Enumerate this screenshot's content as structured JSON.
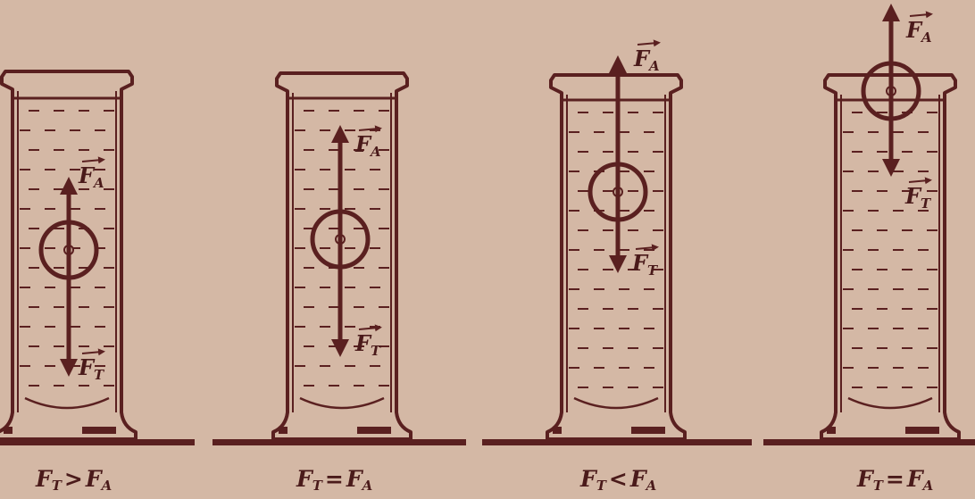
{
  "colors": {
    "background": "#d4b8a5",
    "ink": "#5a2020"
  },
  "panels": [
    {
      "force_up_label": "F",
      "force_up_sub": "A",
      "force_down_label": "F",
      "force_down_sub": "T",
      "caption_left": "F",
      "caption_left_sub": "T",
      "caption_op": ">",
      "caption_right": "F",
      "caption_right_sub": "A"
    },
    {
      "force_up_label": "F",
      "force_up_sub": "A",
      "force_down_label": "F",
      "force_down_sub": "T",
      "caption_left": "F",
      "caption_left_sub": "T",
      "caption_op": "=",
      "caption_right": "F",
      "caption_right_sub": "A"
    },
    {
      "force_up_label": "F",
      "force_up_sub": "A",
      "force_down_label": "F",
      "force_down_sub": "T",
      "caption_left": "F",
      "caption_left_sub": "T",
      "caption_op": "<",
      "caption_right": "F",
      "caption_right_sub": "A"
    },
    {
      "force_up_label": "F",
      "force_up_sub": "A",
      "force_down_label": "F",
      "force_down_sub": "T",
      "caption_left": "F",
      "caption_left_sub": "T",
      "caption_op": "=",
      "caption_right": "F",
      "caption_right_sub": "A"
    }
  ]
}
